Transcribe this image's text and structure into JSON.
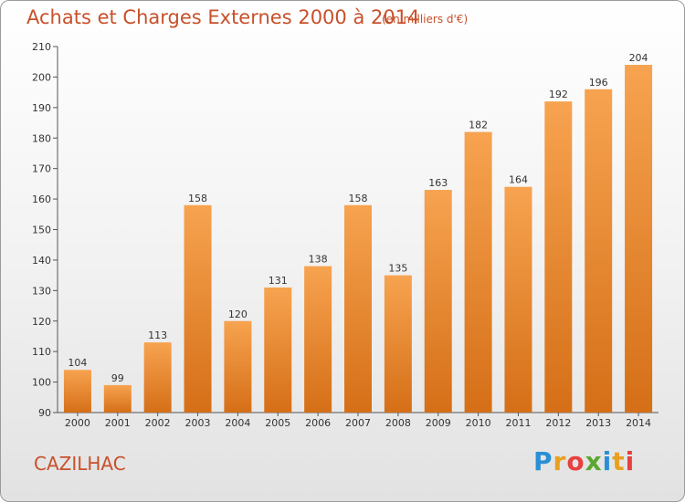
{
  "chart_data": {
    "type": "bar",
    "title": "Achats et Charges Externes 2000 à 2014",
    "subtitle": "(en milliers d'€)",
    "categories": [
      "2000",
      "2001",
      "2002",
      "2003",
      "2004",
      "2005",
      "2006",
      "2007",
      "2008",
      "2009",
      "2010",
      "2011",
      "2012",
      "2013",
      "2014"
    ],
    "values": [
      104,
      99,
      113,
      158,
      120,
      131,
      138,
      158,
      135,
      163,
      182,
      164,
      192,
      196,
      204
    ],
    "ylim": [
      90,
      210
    ],
    "yticks": [
      90,
      100,
      110,
      120,
      130,
      140,
      150,
      160,
      170,
      180,
      190,
      200,
      210
    ],
    "xlabel": "",
    "ylabel": "",
    "grid": false,
    "bar_color": "#e9832f"
  },
  "location": "CAZILHAC",
  "brand": {
    "letters": [
      "P",
      "r",
      "o",
      "x",
      "i",
      "t",
      "i"
    ],
    "colors": [
      "#2a8fd6",
      "#e8a020",
      "#e84040",
      "#5aa832",
      "#2a8fd6",
      "#e8a020",
      "#e84040"
    ]
  }
}
